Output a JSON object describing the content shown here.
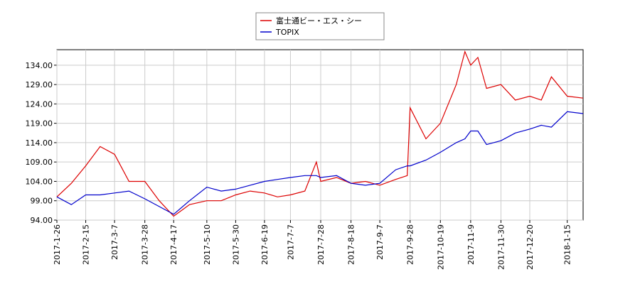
{
  "chart_data": {
    "type": "line",
    "legend": "top",
    "grid": true,
    "x": [
      "2017-1-26",
      "2017-2-5",
      "2017-2-15",
      "2017-2-25",
      "2017-3-7",
      "2017-3-17",
      "2017-3-28",
      "2017-4-7",
      "2017-4-17",
      "2017-4-28",
      "2017-5-10",
      "2017-5-20",
      "2017-5-30",
      "2017-6-9",
      "2017-6-19",
      "2017-6-28",
      "2017-7-7",
      "2017-7-17",
      "2017-7-25",
      "2017-7-28",
      "2017-8-8",
      "2017-8-18",
      "2017-8-28",
      "2017-9-7",
      "2017-9-18",
      "2017-9-26",
      "2017-9-28",
      "2017-10-9",
      "2017-10-19",
      "2017-10-30",
      "2017-11-5",
      "2017-11-9",
      "2017-11-14",
      "2017-11-20",
      "2017-11-30",
      "2017-12-10",
      "2017-12-20",
      "2017-12-28",
      "2018-1-4",
      "2018-1-15",
      "2018-1-26"
    ],
    "series": [
      {
        "name": "富士通ビー・エス・シー",
        "color": "#dd0000",
        "values": [
          100,
          103.5,
          108,
          113,
          111,
          104,
          104,
          99,
          95,
          98,
          99,
          99,
          100.5,
          101.5,
          101,
          100,
          100.5,
          101.5,
          109,
          104,
          105,
          103.5,
          104,
          103,
          104.5,
          105.5,
          123,
          115,
          119,
          129,
          137.5,
          134,
          136,
          128,
          129,
          125,
          126,
          125,
          131,
          126,
          125.5
        ]
      },
      {
        "name": "TOPIX",
        "color": "#0000cc",
        "values": [
          100,
          98,
          100.5,
          100.5,
          101,
          101.5,
          99.5,
          97.5,
          95.5,
          99,
          102.5,
          101.5,
          102,
          103,
          104,
          104.5,
          105,
          105.5,
          105.5,
          105,
          105.5,
          103.5,
          103,
          103.5,
          107,
          108,
          108,
          109.5,
          111.5,
          114,
          115,
          117,
          117,
          113.5,
          114.5,
          116.5,
          117.5,
          118.5,
          118,
          122,
          121.5
        ]
      }
    ],
    "xlim": [
      "2017-1-26",
      "2018-1-26"
    ],
    "xticks": [
      "2017-1-26",
      "2017-2-15",
      "2017-3-7",
      "2017-3-28",
      "2017-4-17",
      "2017-5-10",
      "2017-5-30",
      "2017-6-19",
      "2017-7-7",
      "2017-7-28",
      "2017-8-18",
      "2017-9-7",
      "2017-9-28",
      "2017-10-19",
      "2017-11-9",
      "2017-11-30",
      "2017-12-20",
      "2018-1-15"
    ],
    "ylim": [
      94,
      138
    ],
    "yticks": [
      {
        "value": 94,
        "label": "94.00"
      },
      {
        "value": 99,
        "label": "99.00"
      },
      {
        "value": 104,
        "label": "104.00"
      },
      {
        "value": 109,
        "label": "109.00"
      },
      {
        "value": 114,
        "label": "114.00"
      },
      {
        "value": 119,
        "label": "119.00"
      },
      {
        "value": 124,
        "label": "124.00"
      },
      {
        "value": 129,
        "label": "129.00"
      },
      {
        "value": 134,
        "label": "134.00"
      }
    ]
  }
}
